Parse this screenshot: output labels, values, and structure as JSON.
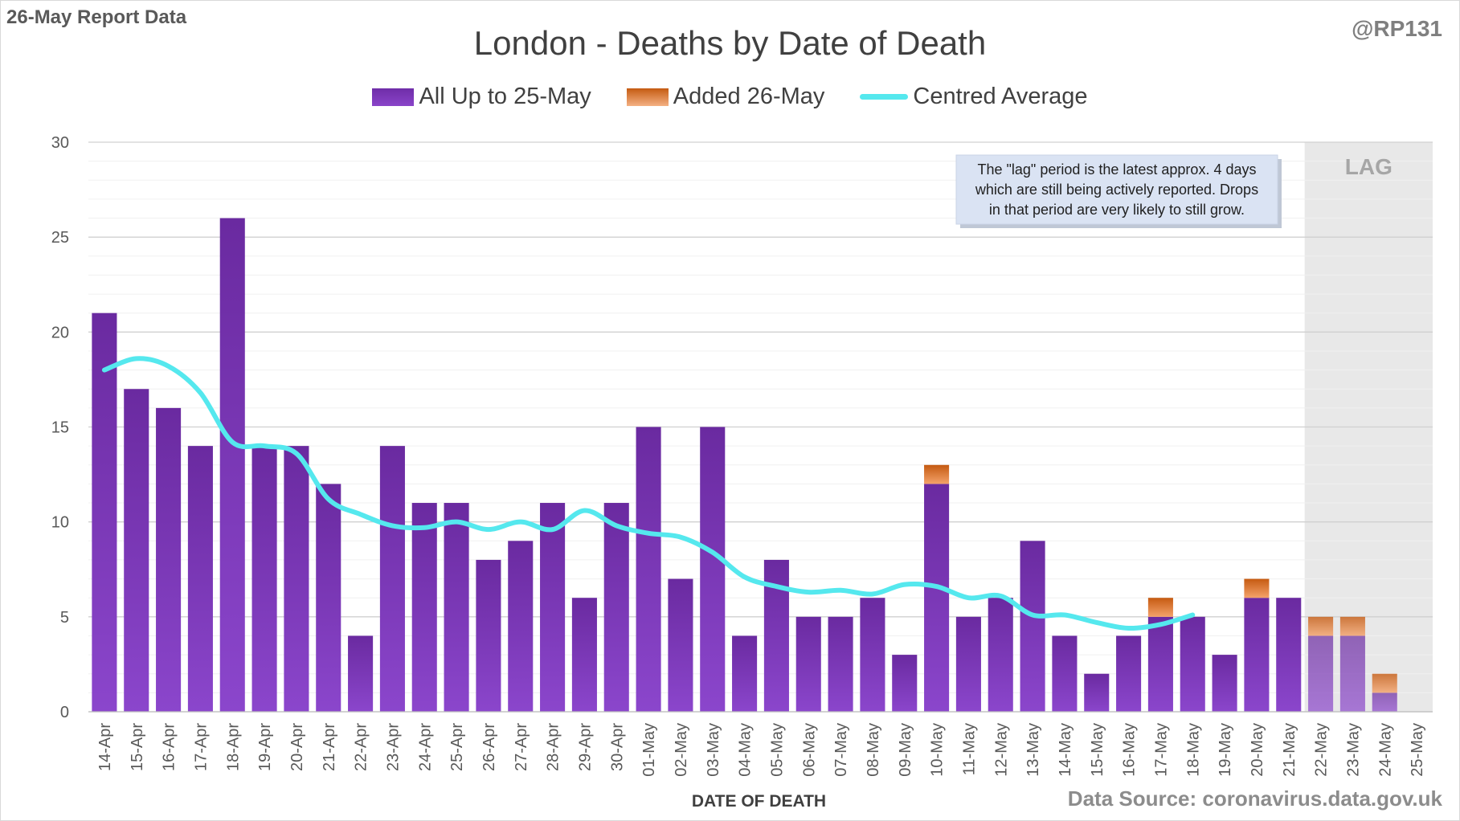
{
  "report_label": "26-May Report Data",
  "handle": "@RP131",
  "source": "Data Source: coronavirus.data.gov.uk",
  "colors": {
    "bar_purple": "#7030a0",
    "bar_orange": "#ed7d31",
    "line_cyan": "#55e8ee",
    "lag_shade": "#e8e8e8",
    "grid": "#d9d9d9"
  },
  "chart_data": {
    "type": "bar",
    "title": "London - Deaths by Date of Death",
    "xlabel": "DATE OF DEATH",
    "ylabel": "",
    "ylim": [
      0,
      30
    ],
    "yticks": [
      0,
      5,
      10,
      15,
      20,
      25,
      30
    ],
    "grid": true,
    "legend_position": "top",
    "categories": [
      "14-Apr",
      "15-Apr",
      "16-Apr",
      "17-Apr",
      "18-Apr",
      "19-Apr",
      "20-Apr",
      "21-Apr",
      "22-Apr",
      "23-Apr",
      "24-Apr",
      "25-Apr",
      "26-Apr",
      "27-Apr",
      "28-Apr",
      "29-Apr",
      "30-Apr",
      "01-May",
      "02-May",
      "03-May",
      "04-May",
      "05-May",
      "06-May",
      "07-May",
      "08-May",
      "09-May",
      "10-May",
      "11-May",
      "12-May",
      "13-May",
      "14-May",
      "15-May",
      "16-May",
      "17-May",
      "18-May",
      "19-May",
      "20-May",
      "21-May",
      "22-May",
      "23-May",
      "24-May",
      "25-May"
    ],
    "series": [
      {
        "name": "All Up to 25-May",
        "kind": "bar",
        "values": [
          21,
          17,
          16,
          14,
          26,
          14,
          14,
          12,
          4,
          14,
          11,
          11,
          8,
          9,
          11,
          6,
          11,
          15,
          7,
          15,
          4,
          8,
          5,
          5,
          6,
          3,
          12,
          5,
          6,
          9,
          4,
          2,
          4,
          5,
          5,
          3,
          6,
          6,
          4,
          4,
          1,
          0
        ]
      },
      {
        "name": "Added 26-May",
        "kind": "bar",
        "values": [
          0,
          0,
          0,
          0,
          0,
          0,
          0,
          0,
          0,
          0,
          0,
          0,
          0,
          0,
          0,
          0,
          0,
          0,
          0,
          0,
          0,
          0,
          0,
          0,
          0,
          0,
          1,
          0,
          0,
          0,
          0,
          0,
          0,
          1,
          0,
          0,
          1,
          0,
          1,
          1,
          1,
          0
        ]
      },
      {
        "name": "Centred Average",
        "kind": "line",
        "values": [
          18,
          18.6,
          18.2,
          16.8,
          14.2,
          14,
          13.6,
          11.2,
          10.4,
          9.8,
          9.7,
          10,
          9.6,
          10,
          9.6,
          10.6,
          9.8,
          9.4,
          9.2,
          8.4,
          7.1,
          6.6,
          6.3,
          6.4,
          6.2,
          6.7,
          6.6,
          6,
          6.1,
          5.1,
          5.1,
          4.7,
          4.4,
          4.6,
          5.1,
          null,
          null,
          null,
          null,
          null,
          null,
          null
        ]
      }
    ],
    "lag_region": {
      "label": "LAG",
      "from": "22-May",
      "to": "25-May"
    },
    "annotation": "The \"lag\" period is the latest approx. 4 days which are still being actively reported. Drops in that period are very likely to still grow."
  }
}
